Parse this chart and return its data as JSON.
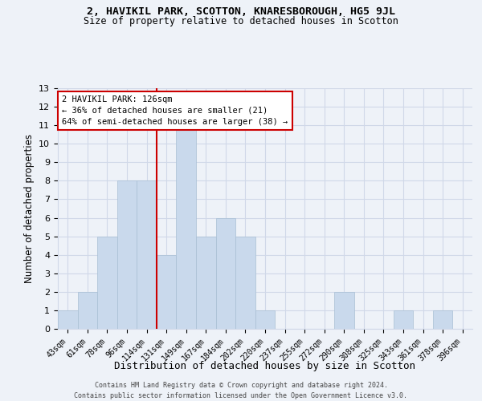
{
  "title1": "2, HAVIKIL PARK, SCOTTON, KNARESBOROUGH, HG5 9JL",
  "title2": "Size of property relative to detached houses in Scotton",
  "xlabel": "Distribution of detached houses by size in Scotton",
  "ylabel": "Number of detached properties",
  "categories": [
    "43sqm",
    "61sqm",
    "78sqm",
    "96sqm",
    "114sqm",
    "131sqm",
    "149sqm",
    "167sqm",
    "184sqm",
    "202sqm",
    "220sqm",
    "237sqm",
    "255sqm",
    "272sqm",
    "290sqm",
    "308sqm",
    "325sqm",
    "343sqm",
    "361sqm",
    "378sqm",
    "396sqm"
  ],
  "values": [
    1,
    2,
    5,
    8,
    8,
    4,
    11,
    5,
    6,
    5,
    1,
    0,
    0,
    0,
    2,
    0,
    0,
    1,
    0,
    1,
    0
  ],
  "bar_color": "#c9d9ec",
  "bar_edge_color": "#a8bfd4",
  "vline_index": 5,
  "annotation_line1": "2 HAVIKIL PARK: 126sqm",
  "annotation_line2": "← 36% of detached houses are smaller (21)",
  "annotation_line3": "64% of semi-detached houses are larger (38) →",
  "annotation_box_color": "#ffffff",
  "annotation_box_edge_color": "#cc0000",
  "vline_color": "#cc0000",
  "ylim": [
    0,
    13
  ],
  "yticks": [
    0,
    1,
    2,
    3,
    4,
    5,
    6,
    7,
    8,
    9,
    10,
    11,
    12,
    13
  ],
  "footer1": "Contains HM Land Registry data © Crown copyright and database right 2024.",
  "footer2": "Contains public sector information licensed under the Open Government Licence v3.0.",
  "background_color": "#eef2f8",
  "grid_color": "#d0d8e8"
}
